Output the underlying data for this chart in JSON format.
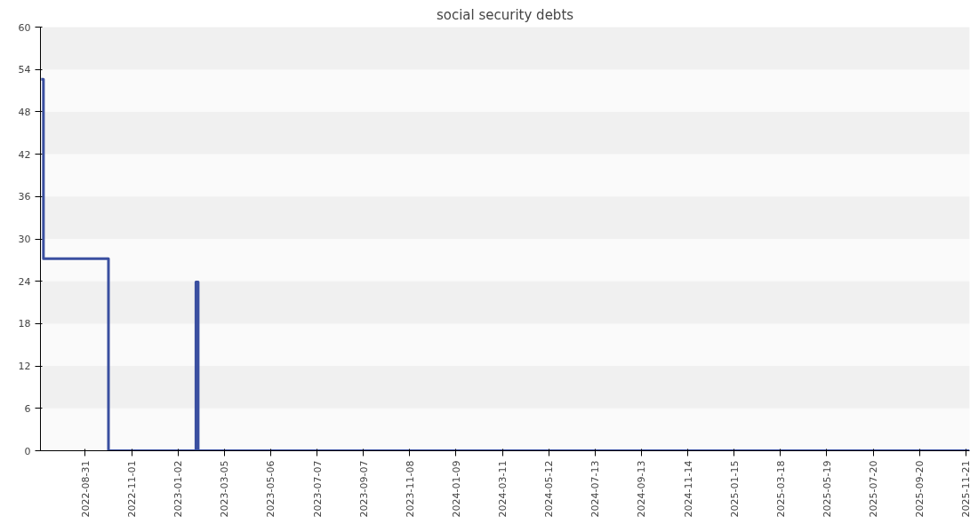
{
  "chart_data": {
    "type": "step",
    "title": "social security debts",
    "x": [
      "2022-07-03",
      "2022-07-06",
      "2022-10-01",
      "2023-01-26",
      "2023-01-29",
      "2025-11-26"
    ],
    "series": [
      {
        "color": "#3a4fa0",
        "values": [
          52.6,
          27.2,
          0,
          23.9,
          0,
          0
        ]
      }
    ],
    "xlim": [
      "2022-07-02",
      "2025-11-26"
    ],
    "xticks": [
      "2022-08-31",
      "2022-11-01",
      "2023-01-02",
      "2023-03-05",
      "2023-05-06",
      "2023-07-07",
      "2023-09-07",
      "2023-11-08",
      "2024-01-09",
      "2024-03-11",
      "2024-05-12",
      "2024-07-13",
      "2024-09-13",
      "2024-11-14",
      "2025-01-15",
      "2025-03-18",
      "2025-05-19",
      "2025-07-20",
      "2025-09-20",
      "2025-11-21"
    ],
    "ylim": [
      0,
      60
    ],
    "yticks": [
      0,
      6,
      12,
      18,
      24,
      30,
      36,
      42,
      48,
      54,
      60
    ],
    "marker": "none",
    "line_style": "solid"
  }
}
